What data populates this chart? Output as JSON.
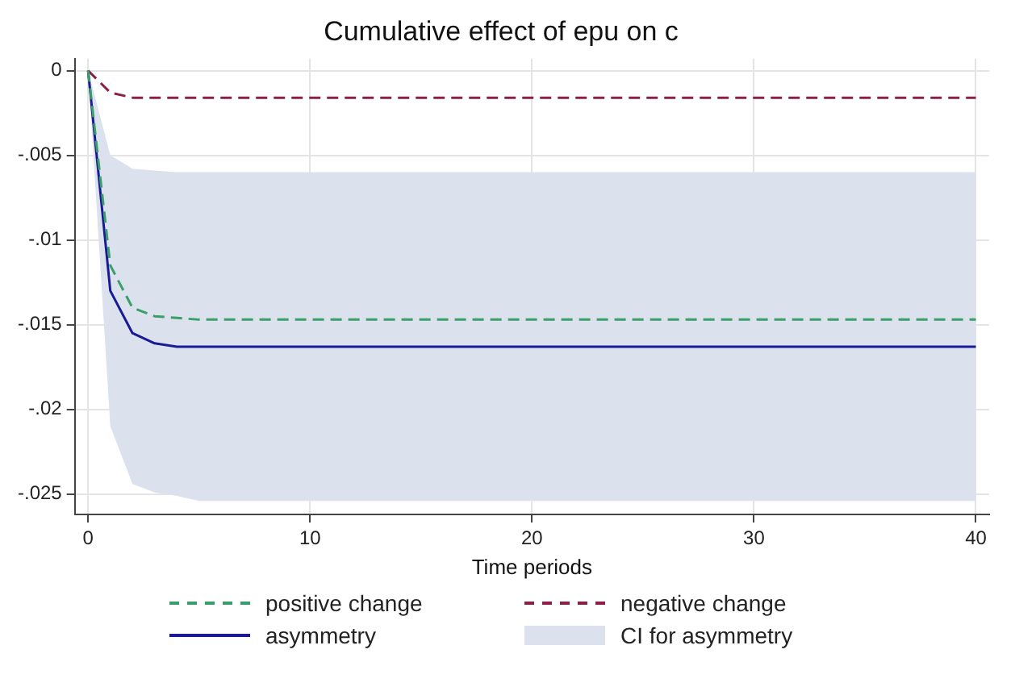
{
  "chart_data": {
    "type": "line",
    "title": "Cumulative effect of epu on c",
    "xlabel": "Time periods",
    "x": [
      0,
      1,
      2,
      3,
      4,
      5,
      6,
      7,
      8,
      9,
      10,
      11,
      12,
      13,
      14,
      15,
      16,
      17,
      18,
      19,
      20,
      21,
      22,
      23,
      24,
      25,
      26,
      27,
      28,
      29,
      30,
      31,
      32,
      33,
      34,
      35,
      36,
      37,
      38,
      39,
      40
    ],
    "series": [
      {
        "name": "positive change",
        "color": "#3a9e68",
        "line_style": "dashed",
        "values": [
          0,
          -0.0115,
          -0.014,
          -0.0145,
          -0.0146,
          -0.0147,
          -0.0147,
          -0.0147,
          -0.0147,
          -0.0147,
          -0.0147,
          -0.0147,
          -0.0147,
          -0.0147,
          -0.0147,
          -0.0147,
          -0.0147,
          -0.0147,
          -0.0147,
          -0.0147,
          -0.0147,
          -0.0147,
          -0.0147,
          -0.0147,
          -0.0147,
          -0.0147,
          -0.0147,
          -0.0147,
          -0.0147,
          -0.0147,
          -0.0147,
          -0.0147,
          -0.0147,
          -0.0147,
          -0.0147,
          -0.0147,
          -0.0147,
          -0.0147,
          -0.0147,
          -0.0147,
          -0.0147
        ]
      },
      {
        "name": "negative change",
        "color": "#8c1f48",
        "line_style": "dashed",
        "values": [
          0,
          -0.0013,
          -0.0016,
          -0.0016,
          -0.0016,
          -0.0016,
          -0.0016,
          -0.0016,
          -0.0016,
          -0.0016,
          -0.0016,
          -0.0016,
          -0.0016,
          -0.0016,
          -0.0016,
          -0.0016,
          -0.0016,
          -0.0016,
          -0.0016,
          -0.0016,
          -0.0016,
          -0.0016,
          -0.0016,
          -0.0016,
          -0.0016,
          -0.0016,
          -0.0016,
          -0.0016,
          -0.0016,
          -0.0016,
          -0.0016,
          -0.0016,
          -0.0016,
          -0.0016,
          -0.0016,
          -0.0016,
          -0.0016,
          -0.0016,
          -0.0016,
          -0.0016,
          -0.0016
        ]
      },
      {
        "name": "asymmetry",
        "color": "#1a1a96",
        "line_style": "solid",
        "values": [
          0,
          -0.013,
          -0.0155,
          -0.0161,
          -0.0163,
          -0.0163,
          -0.0163,
          -0.0163,
          -0.0163,
          -0.0163,
          -0.0163,
          -0.0163,
          -0.0163,
          -0.0163,
          -0.0163,
          -0.0163,
          -0.0163,
          -0.0163,
          -0.0163,
          -0.0163,
          -0.0163,
          -0.0163,
          -0.0163,
          -0.0163,
          -0.0163,
          -0.0163,
          -0.0163,
          -0.0163,
          -0.0163,
          -0.0163,
          -0.0163,
          -0.0163,
          -0.0163,
          -0.0163,
          -0.0163,
          -0.0163,
          -0.0163,
          -0.0163,
          -0.0163,
          -0.0163,
          -0.0163
        ],
        "lower": [
          0,
          -0.021,
          -0.0244,
          -0.0249,
          -0.0251,
          -0.0254,
          -0.0254,
          -0.0254,
          -0.0254,
          -0.0254,
          -0.0254,
          -0.0254,
          -0.0254,
          -0.0254,
          -0.0254,
          -0.0254,
          -0.0254,
          -0.0254,
          -0.0254,
          -0.0254,
          -0.0254,
          -0.0254,
          -0.0254,
          -0.0254,
          -0.0254,
          -0.0254,
          -0.0254,
          -0.0254,
          -0.0254,
          -0.0254,
          -0.0254,
          -0.0254,
          -0.0254,
          -0.0254,
          -0.0254,
          -0.0254,
          -0.0254,
          -0.0254,
          -0.0254,
          -0.0254,
          -0.0254
        ],
        "upper": [
          0,
          -0.005,
          -0.0058,
          -0.0059,
          -0.006,
          -0.006,
          -0.006,
          -0.006,
          -0.006,
          -0.006,
          -0.006,
          -0.006,
          -0.006,
          -0.006,
          -0.006,
          -0.006,
          -0.006,
          -0.006,
          -0.006,
          -0.006,
          -0.006,
          -0.006,
          -0.006,
          -0.006,
          -0.006,
          -0.006,
          -0.006,
          -0.006,
          -0.006,
          -0.006,
          -0.006,
          -0.006,
          -0.006,
          -0.006,
          -0.006,
          -0.006,
          -0.006,
          -0.006,
          -0.006,
          -0.006,
          -0.006
        ]
      }
    ],
    "annotations": [
      "CI for asymmetry"
    ],
    "xlim": [
      -0.6,
      40.6
    ],
    "xticks": [
      0,
      10,
      20,
      30,
      40
    ],
    "ylim": [
      -0.0262,
      0.0007
    ],
    "yticks": [
      {
        "value": 0,
        "label": "0"
      },
      {
        "value": -0.005,
        "label": "-.005"
      },
      {
        "value": -0.01,
        "label": "-.01"
      },
      {
        "value": -0.015,
        "label": "-.015"
      },
      {
        "value": -0.02,
        "label": "-.02"
      },
      {
        "value": -0.025,
        "label": "-.025"
      }
    ],
    "grid": true,
    "legend": "bottom",
    "marker": "none"
  }
}
